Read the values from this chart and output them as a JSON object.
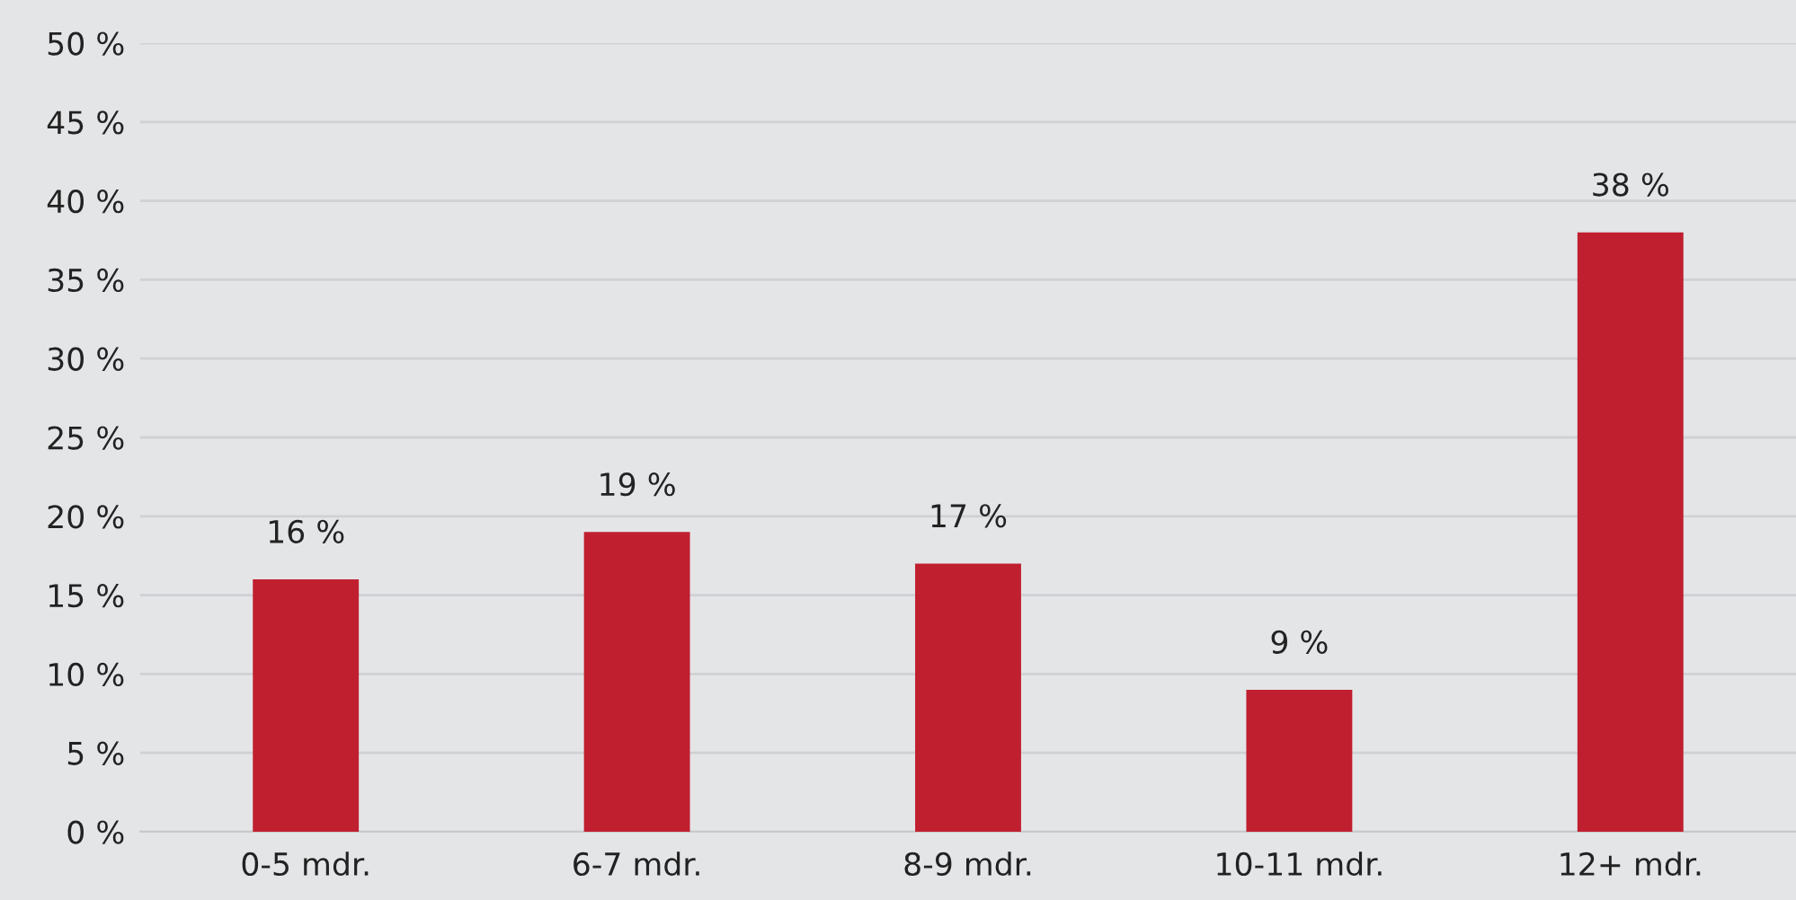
{
  "chart_data": {
    "type": "bar",
    "categories": [
      "0-5 mdr.",
      "6-7 mdr.",
      "8-9 mdr.",
      "10-11 mdr.",
      "12+ mdr."
    ],
    "values": [
      16,
      19,
      17,
      9,
      38
    ],
    "color": "#c01f30",
    "value_labels": [
      "16 %",
      "19 %",
      "17 %",
      "9 %",
      "38 %"
    ],
    "ylim": [
      0,
      50
    ],
    "yticks": [
      {
        "value": 0,
        "label": "0 %"
      },
      {
        "value": 5,
        "label": "5 %"
      },
      {
        "value": 10,
        "label": "10 %"
      },
      {
        "value": 15,
        "label": "15 %"
      },
      {
        "value": 20,
        "label": "20 %"
      },
      {
        "value": 25,
        "label": "25 %"
      },
      {
        "value": 30,
        "label": "30 %"
      },
      {
        "value": 35,
        "label": "35 %"
      },
      {
        "value": 40,
        "label": "40 %"
      },
      {
        "value": 45,
        "label": "45 %"
      },
      {
        "value": 50,
        "label": "50 %"
      }
    ],
    "grid": "y",
    "legend": false
  }
}
